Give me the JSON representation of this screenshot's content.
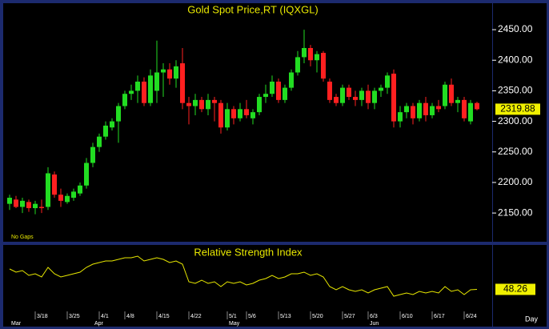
{
  "chart_data": [
    {
      "type": "candlestick",
      "title": "Gold Spot Price,RT (IQXGL)",
      "annotation": "No Gaps",
      "x_label": "Day",
      "categories": [
        null,
        null,
        null,
        null,
        "3/18",
        null,
        null,
        null,
        null,
        "3/25",
        null,
        null,
        null,
        null,
        "4/1",
        null,
        null,
        null,
        "4/8",
        null,
        null,
        null,
        null,
        "4/15",
        null,
        null,
        null,
        null,
        "4/22",
        null,
        null,
        null,
        null,
        null,
        "5/1",
        null,
        null,
        "5/6",
        null,
        null,
        null,
        null,
        "5/13",
        null,
        null,
        null,
        null,
        "5/20",
        null,
        null,
        null,
        null,
        "5/27",
        null,
        null,
        null,
        "6/3",
        null,
        null,
        null,
        null,
        "6/10",
        null,
        null,
        null,
        null,
        "6/17",
        null,
        null,
        null,
        null,
        "6/24",
        null,
        null
      ],
      "month_labels": [
        "Mar",
        null,
        null,
        null,
        null,
        null,
        null,
        null,
        null,
        null,
        null,
        null,
        null,
        "Apr",
        null,
        null,
        null,
        null,
        null,
        null,
        null,
        null,
        null,
        null,
        null,
        null,
        null,
        null,
        null,
        null,
        null,
        null,
        null,
        null,
        "May",
        null,
        null,
        null,
        null,
        null,
        null,
        null,
        null,
        null,
        null,
        null,
        null,
        null,
        null,
        null,
        null,
        null,
        null,
        null,
        null,
        null,
        "Jun",
        null,
        null,
        null,
        null,
        null,
        null,
        null,
        null,
        null,
        null,
        null,
        null,
        null,
        null,
        null,
        null,
        null
      ],
      "open": [
        2165,
        2172,
        2160,
        2168,
        2158,
        2160,
        2160,
        2213,
        2180,
        2168,
        2175,
        2182,
        2195,
        2232,
        2258,
        2275,
        2290,
        2300,
        2325,
        2345,
        2350,
        2365,
        2330,
        2350,
        2380,
        2385,
        2370,
        2395,
        2330,
        2325,
        2335,
        2320,
        2335,
        2330,
        2290,
        2320,
        2305,
        2320,
        2305,
        2315,
        2340,
        2345,
        2365,
        2335,
        2355,
        2380,
        2405,
        2420,
        2400,
        2412,
        2365,
        2340,
        2330,
        2355,
        2340,
        2335,
        2350,
        2330,
        2350,
        2355,
        2378,
        2300,
        2315,
        2325,
        2305,
        2330,
        2310,
        2325,
        2325,
        2360,
        2330,
        2335,
        2300,
        2330
      ],
      "high": [
        2180,
        2178,
        2175,
        2172,
        2170,
        2172,
        2225,
        2218,
        2190,
        2182,
        2190,
        2200,
        2240,
        2265,
        2280,
        2300,
        2305,
        2330,
        2350,
        2360,
        2375,
        2372,
        2385,
        2432,
        2395,
        2395,
        2400,
        2420,
        2340,
        2345,
        2340,
        2345,
        2340,
        2335,
        2330,
        2325,
        2330,
        2335,
        2320,
        2345,
        2360,
        2375,
        2370,
        2360,
        2385,
        2415,
        2450,
        2425,
        2415,
        2415,
        2370,
        2345,
        2360,
        2360,
        2350,
        2355,
        2360,
        2355,
        2360,
        2380,
        2385,
        2325,
        2330,
        2330,
        2335,
        2340,
        2330,
        2335,
        2365,
        2370,
        2340,
        2340,
        2335,
        2332
      ],
      "low": [
        2155,
        2158,
        2150,
        2152,
        2148,
        2150,
        2155,
        2175,
        2160,
        2165,
        2170,
        2178,
        2190,
        2225,
        2250,
        2270,
        2285,
        2265,
        2320,
        2335,
        2330,
        2325,
        2325,
        2330,
        2340,
        2360,
        2355,
        2320,
        2295,
        2310,
        2315,
        2310,
        2300,
        2280,
        2285,
        2295,
        2300,
        2305,
        2295,
        2310,
        2330,
        2340,
        2330,
        2330,
        2350,
        2375,
        2395,
        2390,
        2380,
        2365,
        2330,
        2325,
        2325,
        2335,
        2325,
        2325,
        2320,
        2320,
        2340,
        2345,
        2290,
        2290,
        2305,
        2295,
        2300,
        2300,
        2305,
        2315,
        2320,
        2325,
        2315,
        2300,
        2295,
        2318
      ],
      "close": [
        2175,
        2160,
        2170,
        2158,
        2165,
        2158,
        2215,
        2180,
        2170,
        2178,
        2185,
        2195,
        2232,
        2258,
        2275,
        2293,
        2300,
        2325,
        2345,
        2350,
        2365,
        2330,
        2375,
        2380,
        2385,
        2370,
        2390,
        2330,
        2325,
        2335,
        2320,
        2335,
        2330,
        2290,
        2320,
        2305,
        2320,
        2310,
        2315,
        2340,
        2345,
        2365,
        2335,
        2355,
        2380,
        2405,
        2420,
        2400,
        2410,
        2370,
        2335,
        2330,
        2355,
        2340,
        2335,
        2350,
        2330,
        2350,
        2355,
        2375,
        2300,
        2315,
        2325,
        2305,
        2330,
        2310,
        2325,
        2320,
        2360,
        2330,
        2335,
        2305,
        2330,
        2319.88
      ],
      "up_color": "#22dd22",
      "down_color": "#ff2020",
      "ylim": [
        2103,
        2492
      ],
      "yticks": [
        {
          "value": 2150,
          "label": "2150.00"
        },
        {
          "value": 2200,
          "label": "2200.00"
        },
        {
          "value": 2250,
          "label": "2250.00"
        },
        {
          "value": 2300,
          "label": "2300.00"
        },
        {
          "value": 2350,
          "label": "2350.00"
        },
        {
          "value": 2400,
          "label": "2400.00"
        },
        {
          "value": 2450,
          "label": "2450.00"
        }
      ]
    },
    {
      "type": "line",
      "title": "Relative Strength Index",
      "color": "#e8e800",
      "values": [
        61,
        59,
        60,
        57,
        58,
        56,
        62,
        58,
        56,
        57,
        58,
        59,
        62,
        64,
        65,
        66,
        66,
        67,
        68,
        68,
        69,
        66,
        67,
        68,
        67,
        65,
        66,
        64,
        53,
        52,
        54,
        52,
        53,
        50,
        53,
        52,
        53,
        51,
        52,
        54,
        55,
        57,
        55,
        56,
        58,
        58,
        59,
        57,
        58,
        56,
        50,
        48,
        50,
        48,
        47,
        48,
        46,
        48,
        49,
        50,
        44,
        45,
        46,
        45,
        47,
        46,
        47,
        46,
        50,
        47,
        48,
        45,
        48,
        48.26
      ],
      "ylim": [
        35,
        75
      ]
    }
  ]
}
